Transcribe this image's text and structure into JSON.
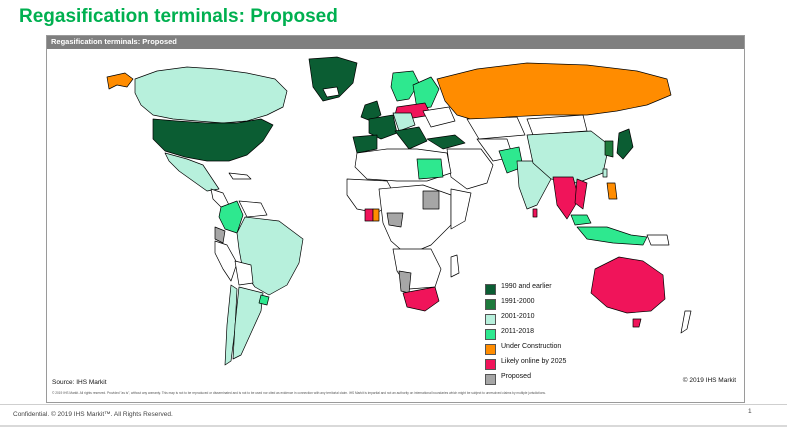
{
  "slide": {
    "title": "Regasification terminals: Proposed"
  },
  "map": {
    "header_title": "Regasification terminals: Proposed",
    "source": "Source: IHS Markit",
    "copyright": "© 2019 IHS Markit",
    "disclaimer": "© 2019 IHS Markit. All rights reserved. Provided \"as is\", without any warranty. This map is not to be reproduced or disseminated and is not to be used nor cited as evidence in connection with any territorial claim. IHS Markit is impartial and not an authority on international boundaries which might be subject to unresolved claims by multiple jurisdictions.",
    "colors": {
      "land_base": "#ffffff",
      "border": "#000000",
      "c1990": "#0b5d33",
      "c1991": "#1e7a3c",
      "c2001": "#b7f0dc",
      "c2011": "#2ee88f",
      "construction": "#ff8c00",
      "online2025": "#f0145a",
      "proposed": "#a6a6a6"
    },
    "legend": [
      {
        "label": "1990 and earlier",
        "color": "#0b5d33"
      },
      {
        "label": "1991-2000",
        "color": "#1e7a3c"
      },
      {
        "label": "2001-2010",
        "color": "#b7f0dc"
      },
      {
        "label": "2011-2018",
        "color": "#2ee88f"
      },
      {
        "label": "Under Construction",
        "color": "#ff8c00"
      },
      {
        "label": "Likely online by 2025",
        "color": "#f0145a"
      },
      {
        "label": "Proposed",
        "color": "#a6a6a6"
      }
    ]
  },
  "footer": {
    "confidential": "Confidential. © 2019 IHS Markit™. All Rights Reserved.",
    "page_number": "1"
  }
}
